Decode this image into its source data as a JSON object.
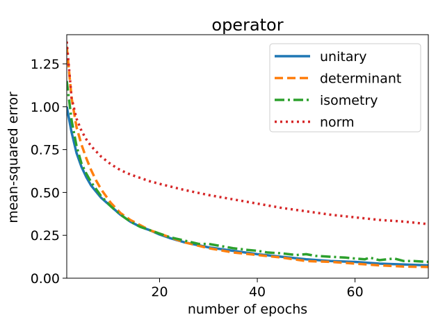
{
  "chart_data": {
    "type": "line",
    "title": "operator",
    "xlabel": "number of epochs",
    "ylabel": "mean-squared error",
    "xlim": [
      1,
      75
    ],
    "ylim": [
      0.0,
      1.42
    ],
    "xticks": [
      20,
      40,
      60
    ],
    "xtick_labels": [
      "20",
      "40",
      "60"
    ],
    "yticks": [
      0.0,
      0.25,
      0.5,
      0.75,
      1.0,
      1.25
    ],
    "ytick_labels": [
      "0.00",
      "0.25",
      "0.50",
      "0.75",
      "1.00",
      "1.25"
    ],
    "grid": false,
    "legend_position": "top-right",
    "series": [
      {
        "name": "unitary",
        "color": "#1f77b4",
        "linestyle": "solid",
        "x": [
          1,
          2,
          3,
          4,
          5,
          6,
          8,
          10,
          12,
          14,
          16,
          18,
          20,
          22,
          25,
          30,
          35,
          40,
          45,
          50,
          55,
          60,
          65,
          70,
          75
        ],
        "y": [
          1.0,
          0.85,
          0.73,
          0.65,
          0.59,
          0.54,
          0.47,
          0.42,
          0.37,
          0.33,
          0.3,
          0.28,
          0.255,
          0.235,
          0.21,
          0.18,
          0.16,
          0.14,
          0.125,
          0.11,
          0.1,
          0.095,
          0.085,
          0.08,
          0.075
        ]
      },
      {
        "name": "determinant",
        "color": "#ff7f0e",
        "linestyle": "dashed",
        "x": [
          1,
          2,
          3,
          4,
          5,
          6,
          7,
          8,
          10,
          12,
          14,
          16,
          18,
          20,
          22,
          25,
          30,
          35,
          40,
          45,
          50,
          55,
          60,
          65,
          70,
          75
        ],
        "y": [
          1.35,
          1.05,
          0.88,
          0.78,
          0.7,
          0.63,
          0.57,
          0.52,
          0.44,
          0.38,
          0.34,
          0.31,
          0.28,
          0.26,
          0.24,
          0.21,
          0.175,
          0.15,
          0.135,
          0.12,
          0.1,
          0.095,
          0.085,
          0.075,
          0.068,
          0.065
        ]
      },
      {
        "name": "isometry",
        "color": "#2ca02c",
        "linestyle": "dashdot",
        "x": [
          1,
          2,
          3,
          4,
          5,
          6,
          8,
          10,
          12,
          14,
          16,
          18,
          20,
          22,
          25,
          28,
          30,
          32,
          35,
          38,
          40,
          42,
          45,
          48,
          50,
          52,
          55,
          58,
          60,
          62,
          63,
          65,
          68,
          70,
          72,
          75
        ],
        "y": [
          1.15,
          0.92,
          0.77,
          0.67,
          0.61,
          0.56,
          0.48,
          0.42,
          0.37,
          0.33,
          0.3,
          0.28,
          0.26,
          0.24,
          0.22,
          0.2,
          0.2,
          0.19,
          0.175,
          0.165,
          0.16,
          0.15,
          0.145,
          0.135,
          0.14,
          0.13,
          0.125,
          0.12,
          0.115,
          0.11,
          0.12,
          0.105,
          0.115,
          0.1,
          0.1,
          0.095
        ]
      },
      {
        "name": "norm",
        "color": "#d62728",
        "linestyle": "dotted",
        "x": [
          1,
          2,
          3,
          4,
          5,
          6,
          7,
          8,
          10,
          12,
          14,
          16,
          18,
          20,
          25,
          30,
          35,
          40,
          45,
          50,
          55,
          60,
          65,
          70,
          75
        ],
        "y": [
          1.38,
          1.05,
          0.93,
          0.86,
          0.81,
          0.77,
          0.74,
          0.71,
          0.665,
          0.63,
          0.605,
          0.585,
          0.565,
          0.55,
          0.515,
          0.485,
          0.46,
          0.435,
          0.41,
          0.39,
          0.37,
          0.355,
          0.34,
          0.33,
          0.315
        ]
      }
    ]
  }
}
